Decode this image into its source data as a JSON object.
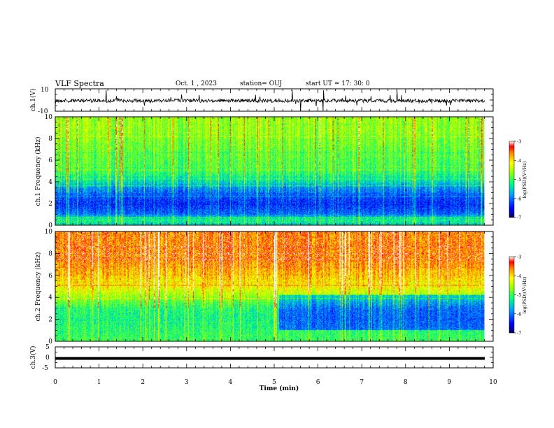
{
  "header": {
    "title": "VLF Spectra",
    "date": "Oct. 1 , 2023",
    "station": "station= OUJ",
    "start": "start  UT =   17: 30: 0"
  },
  "chart_data": [
    {
      "type": "line",
      "panel": "ch1-waveform",
      "ylabel": "ch.1(V)",
      "ylim": [
        -10,
        10
      ],
      "yticks": [
        "10",
        "-10"
      ],
      "xlim": [
        0,
        10
      ]
    },
    {
      "type": "heatmap",
      "panel": "ch1-spectrogram",
      "ylabel": "ch.1 Frequency (kHz)",
      "ylim": [
        0,
        10
      ],
      "yticks": [
        "0",
        "2",
        "4",
        "6",
        "8",
        "10"
      ],
      "xlim": [
        0,
        10
      ],
      "data_extent_min": [
        0,
        9.8
      ],
      "colorbar": {
        "label": "log(PSD)(V²/Hz)",
        "range": [
          -7,
          -3
        ],
        "ticks": [
          "-3",
          "-4",
          "-5",
          "-6",
          "-7"
        ]
      },
      "background_level_profile": {
        "freq_khz": [
          0,
          0.5,
          1,
          1.5,
          2,
          2.5,
          3,
          3.5,
          4,
          5,
          6,
          7,
          8,
          9,
          10
        ],
        "log_psd": [
          -5.5,
          -5.2,
          -6.0,
          -6.2,
          -6.3,
          -6.2,
          -6.0,
          -5.8,
          -5.4,
          -5.0,
          -4.9,
          -4.8,
          -4.7,
          -4.6,
          -4.6
        ]
      }
    },
    {
      "type": "heatmap",
      "panel": "ch2-spectrogram",
      "ylabel": "ch.2 Frequency (kHz)",
      "ylim": [
        0,
        10
      ],
      "yticks": [
        "0",
        "2",
        "4",
        "6",
        "8",
        "10"
      ],
      "xlim": [
        0,
        10
      ],
      "data_extent_min": [
        0,
        9.8
      ],
      "colorbar": {
        "label": "log(PSD)(V²/Hz)",
        "range": [
          -7,
          -3
        ],
        "ticks": [
          "-3",
          "-4",
          "-5",
          "-6",
          "-7"
        ]
      },
      "background_level_profile": {
        "freq_khz": [
          0,
          1,
          2,
          3,
          4,
          5,
          6,
          7,
          8,
          9,
          10
        ],
        "log_psd": [
          -5.0,
          -5.1,
          -5.2,
          -5.1,
          -4.6,
          -4.1,
          -3.9,
          -3.7,
          -3.6,
          -3.6,
          -3.6
        ]
      }
    },
    {
      "type": "line",
      "panel": "ch3-waveform",
      "ylabel": "ch.3(V)",
      "ylim": [
        -5,
        5
      ],
      "yticks": [
        "5",
        "0",
        "-5"
      ],
      "xlim": [
        0,
        10
      ],
      "level_v": -0.5
    }
  ],
  "x_axis": {
    "label": "Time  (min)",
    "ticks": [
      "0",
      "1",
      "2",
      "3",
      "4",
      "5",
      "6",
      "7",
      "8",
      "9",
      "10"
    ]
  }
}
